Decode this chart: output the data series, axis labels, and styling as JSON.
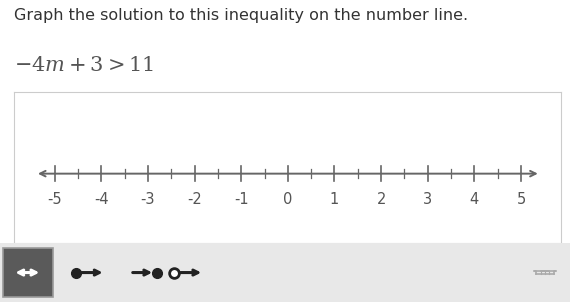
{
  "title": "Graph the solution to this inequality on the number line.",
  "inequality_text": "$-4m+3>11$",
  "number_line_min": -5,
  "number_line_max": 5,
  "tick_labels": [
    -5,
    -4,
    -3,
    -2,
    -1,
    0,
    1,
    2,
    3,
    4,
    5
  ],
  "bg_color": "#ffffff",
  "box_border_color": "#cccccc",
  "axis_color": "#666666",
  "tick_color": "#666666",
  "label_color": "#555555",
  "toolbar_bg": "#e8e8e8",
  "toolbar_selected_bg": "#5a5a5a",
  "title_fontsize": 11.5,
  "inequality_fontsize": 15,
  "tick_label_fontsize": 10.5,
  "toolbar_icon_color": "#222222",
  "trash_color": "#aaaaaa"
}
